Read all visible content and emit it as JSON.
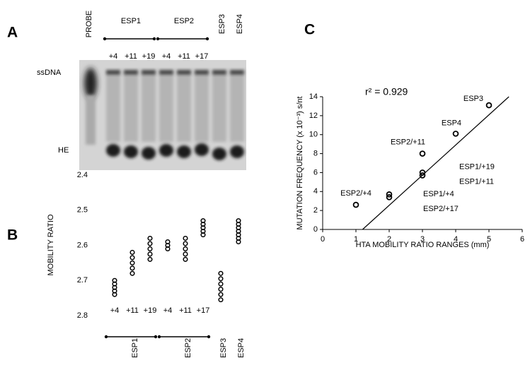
{
  "panel_labels": [
    "A",
    "B",
    "C"
  ],
  "gel": {
    "probe": "PROBE",
    "groups": [
      {
        "name": "ESP1",
        "lanes": [
          "+4",
          "+11",
          "+19"
        ]
      },
      {
        "name": "ESP2",
        "lanes": [
          "+4",
          "+11",
          "+17"
        ]
      },
      {
        "name": "ESP3"
      },
      {
        "name": "ESP4"
      }
    ],
    "bands": [
      "ssDNA",
      "HE"
    ]
  },
  "chart_data": [
    {
      "type": "strip",
      "ylabel": "MOBILITY RATIO",
      "ylim": [
        2.4,
        2.8
      ],
      "y_reversed": true,
      "yticks": [
        2.4,
        2.5,
        2.6,
        2.7,
        2.8
      ],
      "color": "#000000",
      "groups": [
        {
          "name": "ESP1",
          "categories": [
            "+4",
            "+11",
            "+19"
          ],
          "values": [
            [
              2.7,
              2.71,
              2.72,
              2.73,
              2.74
            ],
            [
              2.62,
              2.635,
              2.65,
              2.665,
              2.68
            ],
            [
              2.58,
              2.595,
              2.61,
              2.625,
              2.64
            ]
          ]
        },
        {
          "name": "ESP2",
          "categories": [
            "+4",
            "+11",
            "+17"
          ],
          "values": [
            [
              2.59,
              2.6,
              2.61
            ],
            [
              2.58,
              2.595,
              2.61,
              2.625,
              2.64
            ],
            [
              2.53,
              2.54,
              2.55,
              2.56,
              2.57
            ]
          ]
        },
        {
          "name": "ESP3",
          "categories": [
            null
          ],
          "values": [
            [
              2.68,
              2.695,
              2.71,
              2.725,
              2.74,
              2.755
            ]
          ]
        },
        {
          "name": "ESP4",
          "categories": [
            null
          ],
          "values": [
            [
              2.53,
              2.54,
              2.55,
              2.56,
              2.57,
              2.58,
              2.59
            ]
          ]
        }
      ]
    },
    {
      "type": "scatter",
      "xlabel": "HTA MOBILITY RATIO RANGES (mm)",
      "ylabel": "MUTATION FREQUENCY (x 10⁻³) s/nt",
      "annotation": "r² = 0.929",
      "color": "#000000",
      "x": [
        1,
        2,
        2,
        3,
        3,
        3,
        4,
        5
      ],
      "values": [
        2.6,
        3.7,
        3.4,
        8.0,
        6.0,
        5.7,
        10.1,
        13.1
      ],
      "point_labels": [
        "ESP2/+4",
        "ESP1/+4",
        "ESP2/+17",
        "ESP2/+11",
        "ESP1/+19",
        "ESP1/+11",
        "ESP4",
        "ESP3"
      ],
      "xlim": [
        0,
        6
      ],
      "xticks": [
        0,
        1,
        2,
        3,
        4,
        5,
        6
      ],
      "ylim": [
        0,
        14
      ],
      "yticks": [
        0,
        2,
        4,
        6,
        8,
        10,
        12,
        14
      ],
      "fit_line": {
        "x": [
          1.2,
          5.6
        ],
        "y": [
          0,
          14
        ]
      }
    }
  ]
}
